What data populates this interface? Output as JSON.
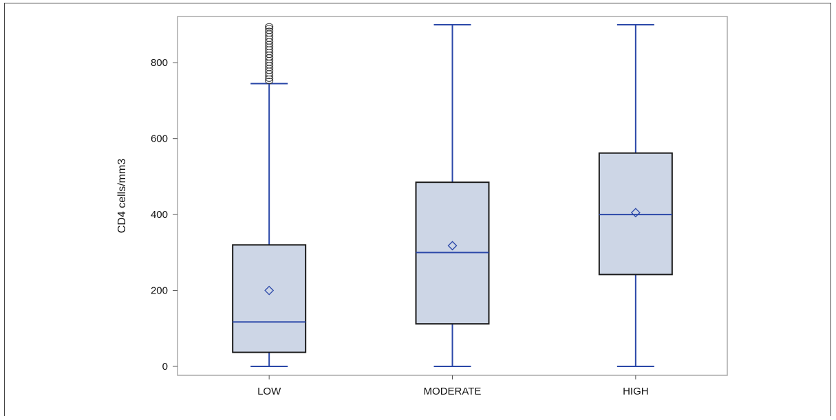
{
  "chart_data": {
    "type": "box",
    "title": "",
    "xlabel": "",
    "ylabel": "CD4 cells/mm3",
    "ylim": [
      -20,
      915
    ],
    "yticks": [
      0,
      200,
      400,
      600,
      800
    ],
    "categories": [
      "LOW",
      "MODERATE",
      "HIGH"
    ],
    "boxes": [
      {
        "category": "LOW",
        "min": 0,
        "q1": 37,
        "median": 117,
        "q3": 320,
        "max": 745,
        "mean": 200,
        "outliers": [
          752,
          758,
          765,
          772,
          779,
          786,
          793,
          800,
          807,
          814,
          821,
          828,
          835,
          842,
          849,
          856,
          863,
          870,
          877,
          884,
          891,
          896
        ]
      },
      {
        "category": "MODERATE",
        "min": 0,
        "q1": 112,
        "median": 300,
        "q3": 485,
        "max": 900,
        "mean": 318,
        "outliers": []
      },
      {
        "category": "HIGH",
        "min": 0,
        "q1": 242,
        "median": 400,
        "q3": 562,
        "max": 900,
        "mean": 405,
        "outliers": []
      }
    ],
    "colors": {
      "box_fill": "#cdd6e6",
      "box_edge": "#1a1a1a",
      "whisker": "#2a47a8",
      "median": "#2a47a8",
      "mean_marker": "#2a47a8",
      "outlier": "#333333",
      "frame": "#aaaaaa"
    },
    "grid": false,
    "legend": "none"
  }
}
